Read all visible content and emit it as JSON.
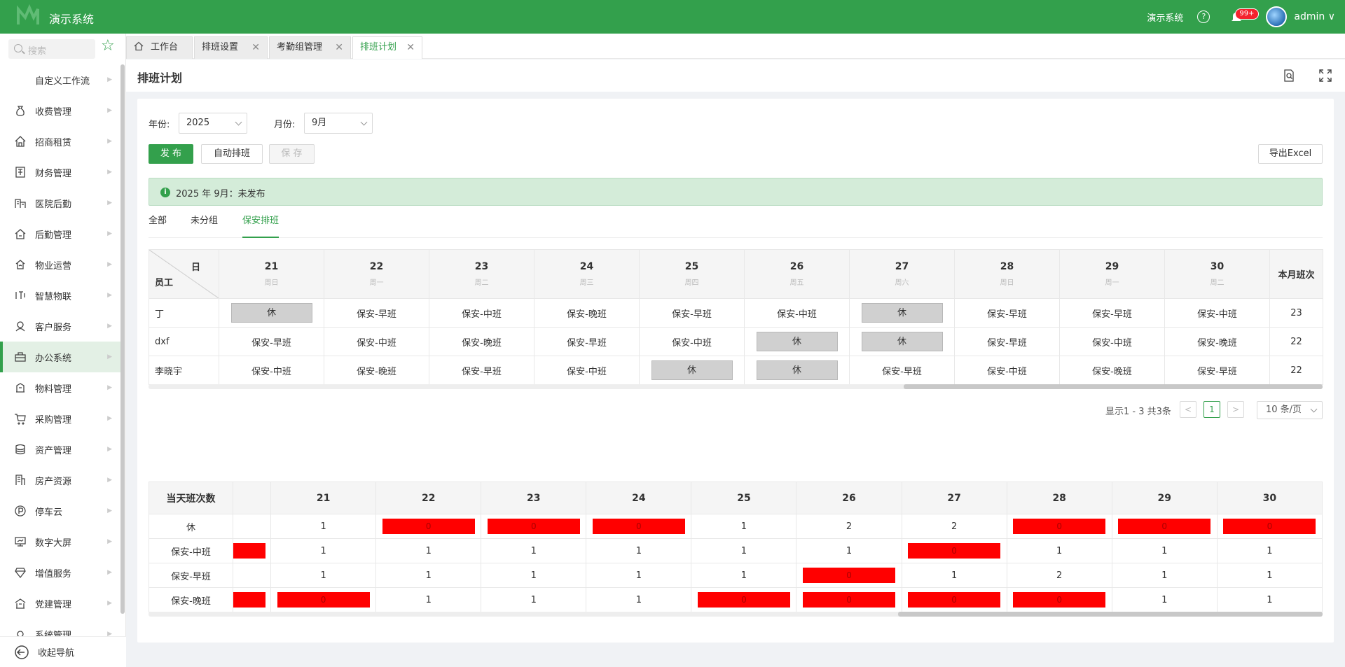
{
  "app": {
    "title": "演示系统",
    "top_link": "演示系统",
    "help": "?",
    "notif_badge": "99+",
    "user": "admin",
    "user_caret": "∨"
  },
  "sidebar": {
    "search_placeholder": "搜索",
    "items": [
      {
        "label": "自定义工作流",
        "icon": "workflow-icon"
      },
      {
        "label": "收费管理",
        "icon": "money-bag-icon"
      },
      {
        "label": "招商租赁",
        "icon": "house-icon"
      },
      {
        "label": "财务管理",
        "icon": "finance-book-icon"
      },
      {
        "label": "医院后勤",
        "icon": "hospital-icon"
      },
      {
        "label": "后勤管理",
        "icon": "logistics-icon"
      },
      {
        "label": "物业运营",
        "icon": "property-icon"
      },
      {
        "label": "智慧物联",
        "icon": "iot-icon"
      },
      {
        "label": "客户服务",
        "icon": "customer-icon"
      },
      {
        "label": "办公系统",
        "icon": "briefcase-icon"
      },
      {
        "label": "物料管理",
        "icon": "material-icon"
      },
      {
        "label": "采购管理",
        "icon": "cart-icon"
      },
      {
        "label": "资产管理",
        "icon": "database-icon"
      },
      {
        "label": "房产资源",
        "icon": "building-icon"
      },
      {
        "label": "停车云",
        "icon": "parking-icon"
      },
      {
        "label": "数字大屏",
        "icon": "monitor-icon"
      },
      {
        "label": "增值服务",
        "icon": "diamond-icon"
      },
      {
        "label": "党建管理",
        "icon": "party-icon"
      },
      {
        "label": "系统管理",
        "icon": "system-icon"
      }
    ],
    "collapse_label": "收起导航"
  },
  "tabs": [
    {
      "label": "工作台"
    },
    {
      "label": "排班设置"
    },
    {
      "label": "考勤组管理"
    },
    {
      "label": "排班计划"
    }
  ],
  "page": {
    "title": "排班计划"
  },
  "filters": {
    "year_label": "年份:",
    "year_value": "2025",
    "month_label": "月份:",
    "month_value": "9月"
  },
  "buttons": {
    "publish": "发 布",
    "auto": "自动排班",
    "save": "保 存",
    "export": "导出Excel"
  },
  "alert": {
    "icon": "i",
    "text": "2025 年 9月：未发布"
  },
  "subtabs": [
    "全部",
    "未分组",
    "保安排班"
  ],
  "schedule": {
    "corner_day": "日",
    "corner_emp": "员工",
    "days": [
      {
        "num": "21",
        "wk": "周日"
      },
      {
        "num": "22",
        "wk": "周一"
      },
      {
        "num": "23",
        "wk": "周二"
      },
      {
        "num": "24",
        "wk": "周三"
      },
      {
        "num": "25",
        "wk": "周四"
      },
      {
        "num": "26",
        "wk": "周五"
      },
      {
        "num": "27",
        "wk": "周六"
      },
      {
        "num": "28",
        "wk": "周日"
      },
      {
        "num": "29",
        "wk": "周一"
      },
      {
        "num": "30",
        "wk": "周二"
      }
    ],
    "total_header": "本月班次",
    "rows": [
      {
        "name": "丁",
        "shifts": [
          "休",
          "保安-早班",
          "保安-中班",
          "保安-晚班",
          "保安-早班",
          "保安-中班",
          "休",
          "保安-早班",
          "保安-早班",
          "保安-中班"
        ],
        "total": "23"
      },
      {
        "name": "dxf",
        "shifts": [
          "保安-早班",
          "保安-中班",
          "保安-晚班",
          "保安-早班",
          "保安-中班",
          "休",
          "休",
          "保安-早班",
          "保安-中班",
          "保安-晚班"
        ],
        "total": "22"
      },
      {
        "name": "李晓宇",
        "shifts": [
          "保安-中班",
          "保安-晚班",
          "保安-早班",
          "保安-中班",
          "休",
          "休",
          "保安-早班",
          "保安-中班",
          "保安-晚班",
          "保安-早班"
        ],
        "total": "22"
      }
    ]
  },
  "pagination": {
    "summary": "显示1 - 3 共3条",
    "prev": "<",
    "current": "1",
    "next": ">",
    "page_size": "10 条/页"
  },
  "counts": {
    "header": "当天班次数",
    "days": [
      "21",
      "22",
      "23",
      "24",
      "25",
      "26",
      "27",
      "28",
      "29",
      "30"
    ],
    "rows": [
      {
        "label": "休",
        "partial_flag": false,
        "values": [
          "1",
          "0",
          "0",
          "0",
          "1",
          "2",
          "2",
          "0",
          "0",
          "0"
        ]
      },
      {
        "label": "保安-中班",
        "partial_flag": true,
        "values": [
          "1",
          "1",
          "1",
          "1",
          "1",
          "1",
          "0",
          "1",
          "1",
          "1"
        ]
      },
      {
        "label": "保安-早班",
        "partial_flag": false,
        "values": [
          "1",
          "1",
          "1",
          "1",
          "1",
          "0",
          "1",
          "2",
          "1",
          "1"
        ]
      },
      {
        "label": "保安-晚班",
        "partial_flag": true,
        "values": [
          "0",
          "1",
          "1",
          "1",
          "0",
          "0",
          "0",
          "0",
          "1",
          "1"
        ]
      }
    ]
  },
  "colors": {
    "brand": "#33a04c",
    "alert_bg": "#d4ecd9",
    "off_cell": "#d0d0d0",
    "zero_cell": "#ff0000"
  }
}
